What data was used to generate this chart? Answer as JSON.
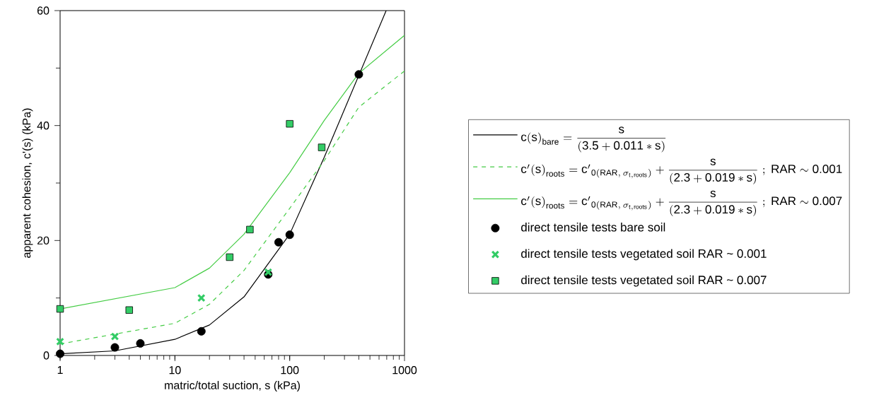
{
  "chart_data": {
    "type": "line",
    "xlabel": "matric/total suction, s (kPa)",
    "ylabel": "apparent cohesion, c'(s) (kPa)",
    "log": "x",
    "xlim": [
      1,
      1000
    ],
    "ylim": [
      0,
      60
    ],
    "xticks": [
      1,
      10,
      100,
      1000
    ],
    "yticks": [
      0,
      {
        "value": 10,
        "label": null
      },
      20,
      {
        "value": 30,
        "label": null
      },
      40,
      {
        "value": 50,
        "label": null
      },
      60
    ],
    "legend": "right",
    "grid": false,
    "series": [
      {
        "name": "\\mathrm{c(s)}_{\\mathrm{bare}} = \\dfrac{\\mathrm{s}}{\\mathrm{(3.5+0.011*s)}}",
        "color": "#000000",
        "marker": "none",
        "line_style": "solid",
        "x": [
          1,
          3,
          10,
          20,
          40,
          100,
          200,
          692
        ],
        "values": [
          0.3,
          0.8,
          2.8,
          5.3,
          10.2,
          21.1,
          34.5,
          60
        ]
      },
      {
        "name": "\\mathrm{c'(s)}_{\\mathrm{roots}} = \\mathrm{c'}_{\\mathrm{0(RAR,\\,}\\sigma_{\\mathrm{t,roots}}\\mathrm{)}} + \\dfrac{\\mathrm{s}}{\\mathrm{(2.3+0.019*s)}}\\ \\mathrm{;\\ RAR} \\sim \\mathrm{0.001}",
        "color": "#44cc44",
        "marker": "none",
        "line_style": "dashed",
        "x": [
          1,
          10,
          20,
          40,
          100,
          200,
          400,
          1000
        ],
        "values": [
          2.0,
          5.6,
          8.9,
          14.8,
          25.6,
          33.9,
          43.2,
          49.5
        ]
      },
      {
        "name": "\\mathrm{c'(s)}_{\\mathrm{roots}} = \\mathrm{c'}_{\\mathrm{0(RAR,\\,}\\sigma_{\\mathrm{t,roots}}\\mathrm{)}} + \\dfrac{\\mathrm{s}}{\\mathrm{(2.3+0.019*s)}}\\ \\mathrm{;\\ RAR} \\sim \\mathrm{0.007}",
        "color": "#44cc44",
        "marker": "none",
        "line_style": "solid",
        "x": [
          1,
          10,
          20,
          40,
          100,
          200,
          400,
          1000
        ],
        "values": [
          8.1,
          11.8,
          15.2,
          21.1,
          31.8,
          40.9,
          49.1,
          55.7
        ]
      },
      {
        "type": "scatter",
        "name": "direct tensile tests bare soil",
        "color": "#000000",
        "marker": "circle",
        "x": [
          1,
          3,
          5,
          17,
          65,
          80,
          100,
          400
        ],
        "values": [
          0.3,
          1.4,
          2.1,
          4.2,
          14.1,
          19.7,
          21.0,
          48.9
        ]
      },
      {
        "type": "scatter",
        "name": "direct tensile tests vegetated soil RAR ~ 0.001",
        "color": "#33cc66",
        "marker": "cross",
        "x": [
          1,
          3,
          17,
          65
        ],
        "values": [
          2.4,
          3.3,
          10.0,
          14.5
        ]
      },
      {
        "type": "scatter",
        "name": "direct tensile tests vegetated soil RAR ~ 0.007",
        "color": "#33cc66",
        "marker": "square",
        "x": [
          1,
          4,
          30,
          45,
          100,
          190
        ],
        "values": [
          8.1,
          7.9,
          17.1,
          21.9,
          40.3,
          36.2
        ]
      }
    ]
  }
}
